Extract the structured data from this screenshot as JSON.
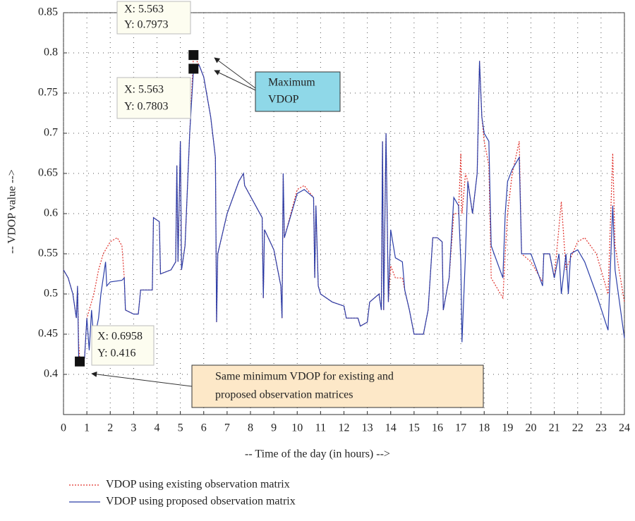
{
  "chart_data": {
    "type": "line",
    "xlabel": "-- Time of the day (in hours) -->",
    "ylabel": "-- VDOP value -->",
    "xlim": [
      0,
      24
    ],
    "ylim": [
      0.35,
      0.85
    ],
    "xticks": [
      0,
      1,
      2,
      3,
      4,
      5,
      6,
      7,
      8,
      9,
      10,
      11,
      12,
      13,
      14,
      15,
      16,
      17,
      18,
      19,
      20,
      21,
      22,
      23,
      24
    ],
    "yticks": [
      0.4,
      0.45,
      0.5,
      0.55,
      0.6,
      0.65,
      0.7,
      0.75,
      0.8,
      0.85
    ],
    "grid": true,
    "series": [
      {
        "name": "VDOP using existing observation matrix",
        "color": "#e0302a",
        "dash": true,
        "x": [
          0,
          0.2,
          0.4,
          0.55,
          0.6,
          0.65,
          0.7,
          0.9,
          1.0,
          1.1,
          1.3,
          1.5,
          1.7,
          2.0,
          2.3,
          2.5,
          2.6,
          2.65,
          3.0,
          3.2,
          3.3,
          3.8,
          3.85,
          4.1,
          4.15,
          4.6,
          4.8,
          4.85,
          4.9,
          5.0,
          5.05,
          5.2,
          5.4,
          5.563,
          5.8,
          6.0,
          6.3,
          6.5,
          6.55,
          6.6,
          7.0,
          7.5,
          7.7,
          7.75,
          8.5,
          8.55,
          8.6,
          9.0,
          9.3,
          9.35,
          9.4,
          9.45,
          10.0,
          10.3,
          10.7,
          10.75,
          10.8,
          10.9,
          11.0,
          11.5,
          12.0,
          12.1,
          12.6,
          12.7,
          13.0,
          13.1,
          13.5,
          13.6,
          13.65,
          13.7,
          13.8,
          13.9,
          14.0,
          14.2,
          14.5,
          14.6,
          14.8,
          15.0,
          15.4,
          15.6,
          15.8,
          16.0,
          16.2,
          16.25,
          16.5,
          16.7,
          16.9,
          17.0,
          17.05,
          17.2,
          17.3,
          17.5,
          17.7,
          17.8,
          17.9,
          18.0,
          18.2,
          18.3,
          18.5,
          18.8,
          18.9,
          19.0,
          19.2,
          19.5,
          19.6,
          20.0,
          20.5,
          20.55,
          20.8,
          21.0,
          21.3,
          21.5,
          21.7,
          22.0,
          22.3,
          22.8,
          23.3,
          23.5,
          23.6,
          24.0
        ],
        "values": [
          0.53,
          0.52,
          0.5,
          0.47,
          0.51,
          0.44,
          0.416,
          0.42,
          0.47,
          0.48,
          0.5,
          0.53,
          0.55,
          0.565,
          0.57,
          0.56,
          0.52,
          0.48,
          0.475,
          0.475,
          0.505,
          0.505,
          0.595,
          0.59,
          0.525,
          0.53,
          0.54,
          0.66,
          0.54,
          0.69,
          0.53,
          0.56,
          0.7,
          0.7973,
          0.785,
          0.77,
          0.72,
          0.67,
          0.465,
          0.55,
          0.6,
          0.64,
          0.65,
          0.635,
          0.595,
          0.495,
          0.58,
          0.555,
          0.51,
          0.47,
          0.65,
          0.57,
          0.63,
          0.635,
          0.62,
          0.52,
          0.61,
          0.51,
          0.5,
          0.49,
          0.485,
          0.47,
          0.47,
          0.46,
          0.465,
          0.49,
          0.5,
          0.48,
          0.69,
          0.48,
          0.7,
          0.49,
          0.535,
          0.52,
          0.52,
          0.505,
          0.48,
          0.45,
          0.45,
          0.48,
          0.57,
          0.57,
          0.565,
          0.48,
          0.52,
          0.6,
          0.6,
          0.675,
          0.6,
          0.65,
          0.64,
          0.6,
          0.65,
          0.79,
          0.72,
          0.69,
          0.66,
          0.52,
          0.51,
          0.495,
          0.55,
          0.6,
          0.65,
          0.69,
          0.55,
          0.54,
          0.515,
          0.55,
          0.55,
          0.52,
          0.615,
          0.53,
          0.545,
          0.565,
          0.57,
          0.55,
          0.5,
          0.675,
          0.56,
          0.49
        ]
      },
      {
        "name": "VDOP using proposed observation matrix",
        "color": "#2b3ea8",
        "dash": false,
        "x": [
          0,
          0.2,
          0.4,
          0.55,
          0.6,
          0.65,
          0.6958,
          0.9,
          1.0,
          1.1,
          1.2,
          1.3,
          1.5,
          1.6,
          1.8,
          1.85,
          2.0,
          2.5,
          2.6,
          2.65,
          3.0,
          3.2,
          3.3,
          3.8,
          3.85,
          4.1,
          4.15,
          4.6,
          4.8,
          4.85,
          4.9,
          5.0,
          5.05,
          5.2,
          5.4,
          5.563,
          5.8,
          6.0,
          6.3,
          6.5,
          6.55,
          6.6,
          7.0,
          7.5,
          7.7,
          7.75,
          8.5,
          8.55,
          8.6,
          9.0,
          9.3,
          9.35,
          9.4,
          9.45,
          10.0,
          10.3,
          10.7,
          10.75,
          10.8,
          10.9,
          11.0,
          11.5,
          12.0,
          12.1,
          12.6,
          12.7,
          13.0,
          13.1,
          13.5,
          13.6,
          13.65,
          13.7,
          13.8,
          13.9,
          14.0,
          14.2,
          14.5,
          14.6,
          14.8,
          15.0,
          15.4,
          15.6,
          15.8,
          16.0,
          16.2,
          16.25,
          16.5,
          16.7,
          16.9,
          17.0,
          17.05,
          17.2,
          17.3,
          17.5,
          17.7,
          17.8,
          17.9,
          18.0,
          18.2,
          18.3,
          18.8,
          18.9,
          19.0,
          19.2,
          19.5,
          19.6,
          20.0,
          20.5,
          20.55,
          20.8,
          21.0,
          21.2,
          21.3,
          21.5,
          21.6,
          21.7,
          22.0,
          22.3,
          22.8,
          23.3,
          23.5,
          23.6,
          24.0
        ],
        "values": [
          0.53,
          0.52,
          0.5,
          0.47,
          0.51,
          0.42,
          0.416,
          0.42,
          0.47,
          0.43,
          0.48,
          0.44,
          0.47,
          0.5,
          0.54,
          0.51,
          0.515,
          0.517,
          0.52,
          0.48,
          0.475,
          0.475,
          0.505,
          0.505,
          0.595,
          0.59,
          0.525,
          0.53,
          0.54,
          0.66,
          0.54,
          0.69,
          0.53,
          0.56,
          0.7,
          0.7803,
          0.785,
          0.77,
          0.72,
          0.67,
          0.465,
          0.55,
          0.6,
          0.64,
          0.65,
          0.635,
          0.595,
          0.495,
          0.58,
          0.555,
          0.51,
          0.47,
          0.65,
          0.57,
          0.625,
          0.63,
          0.62,
          0.52,
          0.61,
          0.51,
          0.5,
          0.49,
          0.485,
          0.47,
          0.47,
          0.46,
          0.465,
          0.49,
          0.5,
          0.48,
          0.69,
          0.48,
          0.7,
          0.49,
          0.58,
          0.545,
          0.54,
          0.505,
          0.48,
          0.45,
          0.45,
          0.48,
          0.57,
          0.57,
          0.565,
          0.48,
          0.52,
          0.62,
          0.61,
          0.54,
          0.44,
          0.55,
          0.64,
          0.6,
          0.65,
          0.79,
          0.72,
          0.7,
          0.69,
          0.56,
          0.52,
          0.6,
          0.64,
          0.655,
          0.67,
          0.55,
          0.55,
          0.51,
          0.55,
          0.55,
          0.52,
          0.55,
          0.5,
          0.55,
          0.5,
          0.55,
          0.555,
          0.54,
          0.5,
          0.455,
          0.61,
          0.53,
          0.445
        ]
      }
    ],
    "datatips": [
      {
        "x": 5.563,
        "y": 0.7973,
        "x_label": "X: 5.563",
        "y_label": "Y: 0.7973"
      },
      {
        "x": 5.563,
        "y": 0.7803,
        "x_label": "X: 5.563",
        "y_label": "Y: 0.7803"
      },
      {
        "x": 0.6958,
        "y": 0.416,
        "x_label": "X: 0.6958",
        "y_label": "Y: 0.416"
      }
    ],
    "callouts": [
      {
        "lines": [
          "Maximum",
          "VDOP"
        ]
      },
      {
        "lines": [
          "Same minimum VDOP for existing and",
          "proposed observation matrices"
        ]
      }
    ]
  }
}
